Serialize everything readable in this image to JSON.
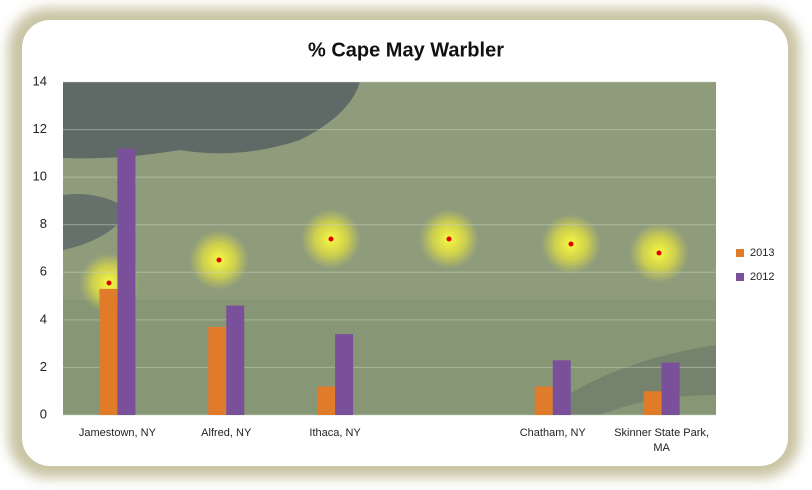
{
  "chart_data": {
    "type": "bar",
    "title": "% Cape May Warbler",
    "categories": [
      "Jamestown, NY",
      "Alfred, NY",
      "Ithaca, NY",
      null,
      "Chatham, NY",
      "Skinner State Park, MA"
    ],
    "series": [
      {
        "name": "2013",
        "color": "#e07b2a",
        "values": [
          5.3,
          3.7,
          1.2,
          null,
          1.2,
          1.0
        ]
      },
      {
        "name": "2012",
        "color": "#7a509a",
        "values": [
          11.2,
          4.6,
          3.4,
          null,
          2.3,
          2.2
        ]
      }
    ],
    "ylim": [
      0,
      14
    ],
    "yticks": [
      0,
      2,
      4,
      6,
      8,
      10,
      12,
      14
    ],
    "grid": true,
    "legend": "right"
  }
}
